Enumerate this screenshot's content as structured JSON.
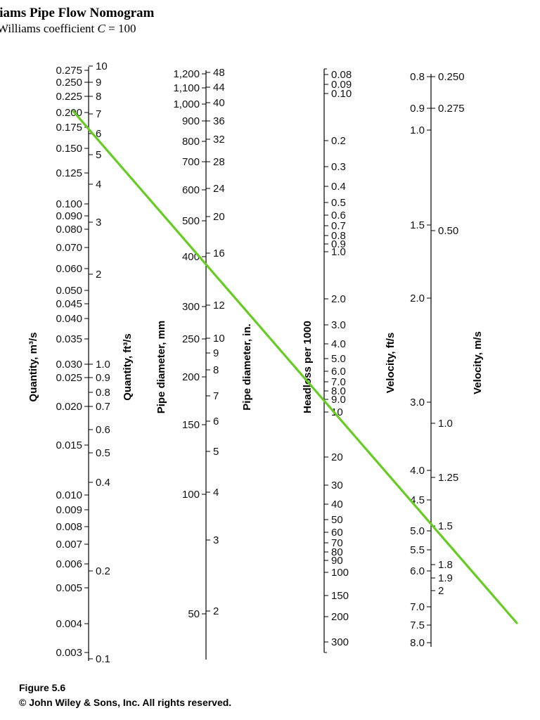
{
  "title": "liams Pipe Flow Nomogram",
  "subtitle": {
    "prefix": "Williams coefficient ",
    "var": "C",
    "suffix": " = 100"
  },
  "caption": {
    "figure": "Figure 5.6",
    "copyright": "© John Wiley & Sons, Inc. All rights reserved."
  },
  "colors": {
    "line": "#66cc22",
    "axis": "#000000"
  },
  "scales": [
    {
      "id": "quantity",
      "left_title": "Quantity, m³/s",
      "right_title": "Quantity, ft³/s",
      "left_ticks": [
        [
          "0.275",
          100
        ],
        [
          "0.250",
          117
        ],
        [
          "0.225",
          137
        ],
        [
          "0.200",
          160
        ],
        [
          "0.175",
          181
        ],
        [
          "0.150",
          211
        ],
        [
          "0.125",
          246
        ],
        [
          "0.100",
          290
        ],
        [
          "0.090",
          307
        ],
        [
          "0.080",
          326
        ],
        [
          "0.070",
          352
        ],
        [
          "0.060",
          382
        ],
        [
          "0.050",
          413
        ],
        [
          "0.045",
          432
        ],
        [
          "0.040",
          453
        ],
        [
          "0.035",
          482
        ],
        [
          "0.030",
          518
        ],
        [
          "0.025",
          537
        ],
        [
          "0.020",
          578
        ],
        [
          "0.015",
          633
        ],
        [
          "0.010",
          704
        ],
        [
          "0.009",
          725
        ],
        [
          "0.008",
          749
        ],
        [
          "0.007",
          774
        ],
        [
          "0.006",
          802
        ],
        [
          "0.005",
          836
        ],
        [
          "0.004",
          887
        ],
        [
          "0.003",
          928
        ]
      ],
      "right_ticks": [
        [
          "10",
          94
        ],
        [
          "9",
          117
        ],
        [
          "8",
          137
        ],
        [
          "7",
          162
        ],
        [
          "6",
          190
        ],
        [
          "5",
          220
        ],
        [
          "4",
          262
        ],
        [
          "3",
          316
        ],
        [
          "2",
          390
        ],
        [
          "1.0",
          518
        ],
        [
          "0.9",
          537
        ],
        [
          "0.8",
          558
        ],
        [
          "0.7",
          578
        ],
        [
          "0.6",
          611
        ],
        [
          "0.5",
          644
        ],
        [
          "0.4",
          686
        ],
        [
          "0.2",
          812
        ],
        [
          "0.1",
          937
        ]
      ]
    },
    {
      "id": "diameter",
      "left_title": "Pipe diameter, mm",
      "right_title": "Pipe diameter, in.",
      "left_ticks": [
        [
          "1,200",
          105
        ],
        [
          "1,100",
          125
        ],
        [
          "1,000",
          148
        ],
        [
          "900",
          172
        ],
        [
          "800",
          201
        ],
        [
          "700",
          230
        ],
        [
          "600",
          270
        ],
        [
          "500",
          314
        ],
        [
          "400",
          365
        ],
        [
          "300",
          436
        ],
        [
          "250",
          482
        ],
        [
          "200",
          536
        ],
        [
          "150",
          604
        ],
        [
          "100",
          703
        ],
        [
          "50",
          873
        ]
      ],
      "right_ticks": [
        [
          "48",
          103
        ],
        [
          "44",
          124
        ],
        [
          "40",
          146
        ],
        [
          "36",
          172
        ],
        [
          "32",
          198
        ],
        [
          "28",
          230
        ],
        [
          "24",
          268
        ],
        [
          "20",
          308
        ],
        [
          "16",
          360
        ],
        [
          "12",
          434
        ],
        [
          "10",
          481
        ],
        [
          "9",
          502
        ],
        [
          "8",
          526
        ],
        [
          "7",
          563
        ],
        [
          "6",
          599
        ],
        [
          "5",
          642
        ],
        [
          "4",
          700
        ],
        [
          "3",
          768
        ],
        [
          "2",
          869
        ]
      ]
    },
    {
      "id": "headloss",
      "left_title": "",
      "right_title": "Headloss per 1000",
      "left_ticks": [],
      "right_ticks": [
        [
          "0.08",
          106
        ],
        [
          "0.09",
          120
        ],
        [
          "0.10",
          133
        ],
        [
          "0.2",
          200
        ],
        [
          "0.3",
          237
        ],
        [
          "0.4",
          265
        ],
        [
          "0.5",
          288
        ],
        [
          "0.6",
          306
        ],
        [
          "0.7",
          321
        ],
        [
          "0.8",
          335
        ],
        [
          "0.9",
          347
        ],
        [
          "1.0",
          358
        ],
        [
          "2.0",
          425
        ],
        [
          "3.0",
          462
        ],
        [
          "4.0",
          489
        ],
        [
          "5.0",
          510
        ],
        [
          "6.0",
          528
        ],
        [
          "7.0",
          543
        ],
        [
          "8.0",
          556
        ],
        [
          "9.0",
          568
        ],
        [
          "10",
          586
        ],
        [
          "20",
          650
        ],
        [
          "30",
          690
        ],
        [
          "40",
          717
        ],
        [
          "50",
          739
        ],
        [
          "60",
          757
        ],
        [
          "70",
          772
        ],
        [
          "80",
          785
        ],
        [
          "90",
          797
        ],
        [
          "100",
          814
        ],
        [
          "150",
          847
        ],
        [
          "200",
          877
        ],
        [
          "300",
          913
        ]
      ]
    },
    {
      "id": "velocity",
      "left_title": "Velocity, ft/s",
      "right_title": "Velocity, m/s",
      "left_ticks": [
        [
          "0.8",
          109
        ],
        [
          "0.9",
          154
        ],
        [
          "1.0",
          185
        ],
        [
          "1.5",
          320
        ],
        [
          "2.0",
          424
        ],
        [
          "3.0",
          572
        ],
        [
          "4.0",
          669
        ],
        [
          "4.5",
          711
        ],
        [
          "5.0",
          755
        ],
        [
          "5.5",
          782
        ],
        [
          "6.0",
          812
        ],
        [
          "7.0",
          863
        ],
        [
          "7.5",
          889
        ],
        [
          "8.0",
          914
        ]
      ],
      "right_ticks": [
        [
          "0.250",
          109
        ],
        [
          "0.275",
          154
        ],
        [
          "0.50",
          328
        ],
        [
          "1.0",
          602
        ],
        [
          "1.25",
          679
        ],
        [
          "1.5",
          748
        ],
        [
          "1.8",
          803
        ],
        [
          "1.9",
          822
        ],
        [
          "2",
          840
        ]
      ]
    }
  ],
  "example_line": {
    "from": "Quantity 0.200 m³/s",
    "to": "Velocity 7.0 ft/s"
  }
}
